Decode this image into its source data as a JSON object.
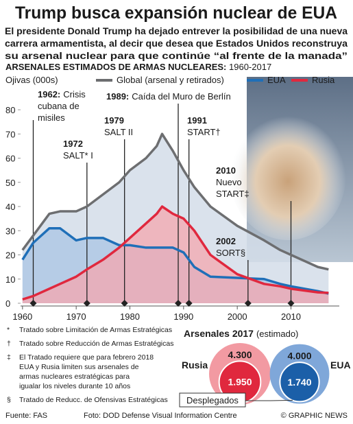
{
  "header": {
    "title": "Trump busca expansión nuclear de EUA",
    "subtitle": [
      "El presidente Donald Trump ha dejado entrever la posibilidad de una nueva",
      "carrera armamentista, al decir que desea que Estados Unidos reconstruya",
      "su arsenal nuclear para que continúe “al frente de la manada”"
    ]
  },
  "chart_data": [
    {
      "type": "line",
      "title": "ARSENALES ESTIMADOS DE ARMAS NUCLEARES:",
      "subtitle": "1960-2017",
      "y_label": "Ojivas (000s)",
      "x": [
        1960,
        1962,
        1965,
        1967,
        1970,
        1972,
        1975,
        1978,
        1980,
        1983,
        1985,
        1986,
        1988,
        1990,
        1992,
        1995,
        2000,
        2005,
        2008,
        2010,
        2015,
        2017
      ],
      "series": [
        {
          "name": "Global (arsenal y retirados)",
          "color": "#6d6e70",
          "values": [
            22,
            28,
            37,
            38,
            38,
            40,
            45,
            50,
            55,
            60,
            65,
            70,
            63,
            55,
            48,
            40,
            32,
            26,
            22,
            20,
            15,
            14
          ]
        },
        {
          "name": "EUA",
          "color": "#1f6fb8",
          "values": [
            18,
            25,
            31,
            31,
            26,
            27,
            27,
            24,
            24,
            23,
            23,
            23,
            23,
            21,
            15,
            11,
            10.5,
            10,
            8,
            7,
            5,
            4
          ]
        },
        {
          "name": "Rusia",
          "color": "#e0283e",
          "values": [
            1.6,
            3,
            6,
            8,
            11,
            14,
            18,
            23,
            27,
            33,
            37,
            40,
            37,
            35,
            30,
            20,
            12,
            8,
            7,
            6,
            4.5,
            4.3
          ]
        }
      ],
      "xlim": [
        1959,
        2019
      ],
      "ylim": [
        0,
        80
      ],
      "xticks": [
        1960,
        1970,
        1980,
        1990,
        2000,
        2010
      ],
      "yticks": [
        0,
        10,
        20,
        30,
        40,
        50,
        60,
        70,
        80
      ],
      "grid": false,
      "annotations": [
        {
          "x": 1962,
          "label": "1962:",
          "text": [
            "Crisis",
            "cubana de",
            "misiles"
          ]
        },
        {
          "x": 1972,
          "label": "1972",
          "text": [
            "SALT* I"
          ]
        },
        {
          "x": 1979,
          "label": "1979",
          "text": [
            "SALT II"
          ]
        },
        {
          "x": 1989,
          "label": "1989:",
          "text": [
            "Caída del Muro de Berlín"
          ]
        },
        {
          "x": 1991,
          "label": "1991",
          "text": [
            "START†"
          ]
        },
        {
          "x": 2010,
          "label": "2010",
          "text": [
            "Nuevo",
            "START‡"
          ]
        },
        {
          "x": 2002,
          "label": "2002",
          "text": [
            "SORT§"
          ]
        }
      ]
    },
    {
      "type": "circles",
      "title": "Arsenales 2017",
      "subtitle": "(estimado)",
      "categories": [
        "Rusia",
        "EUA"
      ],
      "values": [
        4300,
        4000
      ],
      "value_labels": [
        "4.300",
        "4.000"
      ],
      "deployed": [
        1950,
        1740
      ],
      "deployed_labels": [
        "1.950",
        "1.740"
      ],
      "deployed_title": "Desplegados",
      "colors": [
        "#f29aa2",
        "#7fa7d9"
      ],
      "deployed_colors": [
        "#e0283e",
        "#1b5fa8"
      ]
    }
  ],
  "footnotes": [
    {
      "symbol": "*",
      "lines": [
        "Tratado sobre Limitación de Armas Estratégicas"
      ]
    },
    {
      "symbol": "†",
      "lines": [
        "Tratado sobre Reducción de Armas Estratégicas"
      ]
    },
    {
      "symbol": "‡",
      "lines": [
        "El Tratado requiere que para febrero 2018",
        "EUA y Rusia limiten sus arsenales de",
        "armas nucleares estratégicas para",
        "igualar los niveles durante 10 años"
      ]
    },
    {
      "symbol": "§",
      "lines": [
        "Tratado de Reducc. de Ofensivas Estratégicas"
      ]
    }
  ],
  "footer": {
    "source": "Fuente: FAS",
    "photo": "Foto: DOD Defense Visual Information Centre",
    "credit": "© GRAPHIC NEWS"
  }
}
